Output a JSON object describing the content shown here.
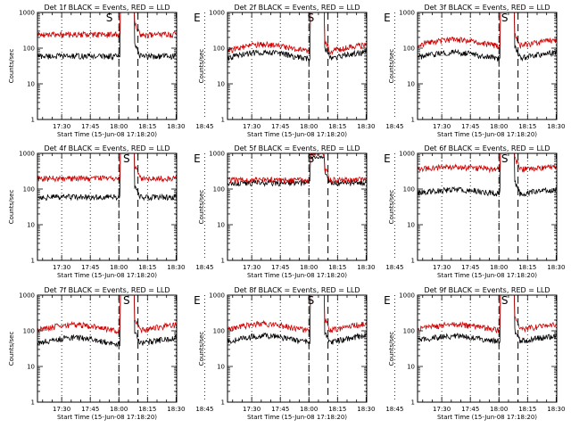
{
  "figure": {
    "background": "#ffffff",
    "axis_color": "#000000",
    "colors": {
      "events": "#000000",
      "lld": "#d00000",
      "markers": "#000000"
    }
  },
  "chart_data": [
    {
      "type": "line",
      "title": "Det 1f BLACK = Events, RED = LLD",
      "xlabel": "Start Time (15-Jun-08 17:18:20)",
      "ylabel": "Counts/sec",
      "yscale": "log",
      "ylim": [
        1,
        1000
      ],
      "xlim_minutes": [
        17.3,
        90.3
      ],
      "x_ticks": [
        "17:30",
        "17:45",
        "18:00",
        "18:15",
        "18:30",
        "18:45"
      ],
      "y_ticks": [
        "1",
        "10",
        "100",
        "1000"
      ],
      "grid": "vertical dotted at ticks",
      "markers": [
        {
          "label": "S",
          "time": "17:55"
        },
        {
          "label": "E",
          "time": "18:41"
        }
      ],
      "dashed_lines": [
        "18:00",
        "18:10"
      ],
      "series": [
        {
          "name": "Events",
          "color": "#000000",
          "baseline": 60,
          "bump": 0,
          "peak": 1500
        },
        {
          "name": "LLD",
          "color": "#d00000",
          "baseline": 240,
          "bump": 0,
          "peak": 1500
        }
      ]
    },
    {
      "type": "line",
      "title": "Det 2f BLACK = Events, RED = LLD",
      "xlabel": "Start Time (15-Jun-08 17:18:20)",
      "ylabel": "Counts/sec",
      "yscale": "log",
      "ylim": [
        1,
        1000
      ],
      "xlim_minutes": [
        17.3,
        90.3
      ],
      "x_ticks": [
        "17:30",
        "17:45",
        "18:00",
        "18:15",
        "18:30",
        "18:45"
      ],
      "y_ticks": [
        "1",
        "10",
        "100",
        "1000"
      ],
      "grid": "vertical dotted at ticks",
      "markers": [
        {
          "label": "S",
          "time": "18:01"
        },
        {
          "label": "E",
          "time": "18:41"
        }
      ],
      "dashed_lines": [
        "18:00",
        "18:10"
      ],
      "series": [
        {
          "name": "Events",
          "color": "#000000",
          "baseline": 62,
          "bump": 1.6,
          "peak": 1500
        },
        {
          "name": "LLD",
          "color": "#d00000",
          "baseline": 100,
          "bump": 1.6,
          "peak": 1500
        }
      ]
    },
    {
      "type": "line",
      "title": "Det 3f BLACK = Events, RED = LLD",
      "xlabel": "Start Time (15-Jun-08 17:18:20)",
      "ylabel": "Counts/sec",
      "yscale": "log",
      "ylim": [
        1,
        1000
      ],
      "xlim_minutes": [
        17.3,
        90.3
      ],
      "x_ticks": [
        "17:30",
        "17:45",
        "18:00",
        "18:15",
        "18:30",
        "18:45"
      ],
      "y_ticks": [
        "1",
        "10",
        "100",
        "1000"
      ],
      "grid": "vertical dotted at ticks",
      "markers": [
        {
          "label": "S",
          "time": "18:03"
        },
        {
          "label": "E",
          "time": "18:41"
        }
      ],
      "dashed_lines": [
        "18:00",
        "18:10"
      ],
      "series": [
        {
          "name": "Events",
          "color": "#000000",
          "baseline": 62,
          "bump": 1.5,
          "peak": 1500
        },
        {
          "name": "LLD",
          "color": "#d00000",
          "baseline": 140,
          "bump": 1.5,
          "peak": 1500
        }
      ]
    },
    {
      "type": "line",
      "title": "Det 4f BLACK = Events, RED = LLD",
      "xlabel": "Start Time (15-Jun-08 17:18:20)",
      "ylabel": "Counts/sec",
      "yscale": "log",
      "ylim": [
        1,
        1000
      ],
      "xlim_minutes": [
        17.3,
        90.3
      ],
      "x_ticks": [
        "17:30",
        "17:45",
        "18:00",
        "18:15",
        "18:30",
        "18:45"
      ],
      "y_ticks": [
        "1",
        "10",
        "100",
        "1000"
      ],
      "grid": "vertical dotted at ticks",
      "markers": [
        {
          "label": "S",
          "time": "18:04"
        },
        {
          "label": "E",
          "time": "18:41"
        }
      ],
      "dashed_lines": [
        "18:00",
        "18:10"
      ],
      "series": [
        {
          "name": "Events",
          "color": "#000000",
          "baseline": 60,
          "bump": 0,
          "peak": 1500
        },
        {
          "name": "LLD",
          "color": "#d00000",
          "baseline": 200,
          "bump": 0,
          "peak": 1500
        }
      ]
    },
    {
      "type": "line",
      "title": "Det 5f BLACK = Events, RED = LLD",
      "xlabel": "Start Time (15-Jun-08 17:18:20)",
      "ylabel": "Counts/sec",
      "yscale": "log",
      "ylim": [
        1,
        1000
      ],
      "xlim_minutes": [
        17.3,
        90.3
      ],
      "x_ticks": [
        "17:30",
        "17:45",
        "18:00",
        "18:15",
        "18:30",
        "18:45"
      ],
      "y_ticks": [
        "1",
        "10",
        "100",
        "1000"
      ],
      "grid": "vertical dotted at ticks",
      "markers": [
        {
          "label": "S",
          "time": "18:01"
        },
        {
          "label": "E",
          "time": "18:41"
        }
      ],
      "dashed_lines": [
        "18:00",
        "18:10"
      ],
      "series": [
        {
          "name": "Events",
          "color": "#000000",
          "baseline": 150,
          "bump": 0,
          "peak": 800
        },
        {
          "name": "LLD",
          "color": "#d00000",
          "baseline": 180,
          "bump": 0,
          "peak": 950
        }
      ]
    },
    {
      "type": "line",
      "title": "Det 6f BLACK = Events, RED = LLD",
      "xlabel": "Start Time (15-Jun-08 17:18:20)",
      "ylabel": "Counts/sec",
      "yscale": "log",
      "ylim": [
        1,
        1000
      ],
      "xlim_minutes": [
        17.3,
        90.3
      ],
      "x_ticks": [
        "17:30",
        "17:45",
        "18:00",
        "18:15",
        "18:30",
        "18:45"
      ],
      "y_ticks": [
        "1",
        "10",
        "100",
        "1000"
      ],
      "grid": "vertical dotted at ticks",
      "markers": [
        {
          "label": "S",
          "time": "18:03"
        },
        {
          "label": "E",
          "time": "18:41"
        }
      ],
      "dashed_lines": [
        "18:00",
        "18:10"
      ],
      "series": [
        {
          "name": "Events",
          "color": "#000000",
          "baseline": 85,
          "bump": 1.3,
          "peak": 1500
        },
        {
          "name": "LLD",
          "color": "#d00000",
          "baseline": 380,
          "bump": 1.2,
          "peak": 1500
        }
      ]
    },
    {
      "type": "line",
      "title": "Det 7f BLACK = Events, RED = LLD",
      "xlabel": "Start Time (15-Jun-08 17:18:20)",
      "ylabel": "Counts/sec",
      "yscale": "log",
      "ylim": [
        1,
        1000
      ],
      "xlim_minutes": [
        17.3,
        90.3
      ],
      "x_ticks": [
        "17:30",
        "17:45",
        "18:00",
        "18:15",
        "18:30",
        "18:45"
      ],
      "y_ticks": [
        "1",
        "10",
        "100",
        "1000"
      ],
      "grid": "vertical dotted at ticks",
      "markers": [
        {
          "label": "S",
          "time": "18:04"
        },
        {
          "label": "E",
          "time": "18:41"
        }
      ],
      "dashed_lines": [
        "18:00",
        "18:10"
      ],
      "series": [
        {
          "name": "Events",
          "color": "#000000",
          "baseline": 52,
          "bump": 1.5,
          "peak": 1500
        },
        {
          "name": "LLD",
          "color": "#d00000",
          "baseline": 120,
          "bump": 1.5,
          "peak": 1500
        }
      ]
    },
    {
      "type": "line",
      "title": "Det 8f BLACK = Events, RED = LLD",
      "xlabel": "Start Time (15-Jun-08 17:18:20)",
      "ylabel": "Counts/sec",
      "yscale": "log",
      "ylim": [
        1,
        1000
      ],
      "xlim_minutes": [
        17.3,
        90.3
      ],
      "x_ticks": [
        "17:30",
        "17:45",
        "18:00",
        "18:15",
        "18:30",
        "18:45"
      ],
      "y_ticks": [
        "1",
        "10",
        "100",
        "1000"
      ],
      "grid": "vertical dotted at ticks",
      "markers": [
        {
          "label": "S",
          "time": "18:01"
        },
        {
          "label": "E",
          "time": "18:41"
        }
      ],
      "dashed_lines": [
        "18:00",
        "18:10"
      ],
      "series": [
        {
          "name": "Events",
          "color": "#000000",
          "baseline": 58,
          "bump": 1.6,
          "peak": 1500
        },
        {
          "name": "LLD",
          "color": "#d00000",
          "baseline": 125,
          "bump": 1.6,
          "peak": 1500
        }
      ]
    },
    {
      "type": "line",
      "title": "Det 9f BLACK = Events, RED = LLD",
      "xlabel": "Start Time (15-Jun-08 17:18:20)",
      "ylabel": "Counts/sec",
      "yscale": "log",
      "ylim": [
        1,
        1000
      ],
      "xlim_minutes": [
        17.3,
        90.3
      ],
      "x_ticks": [
        "17:30",
        "17:45",
        "18:00",
        "18:15",
        "18:30",
        "18:45"
      ],
      "y_ticks": [
        "1",
        "10",
        "100",
        "1000"
      ],
      "grid": "vertical dotted at ticks",
      "markers": [
        {
          "label": "S",
          "time": "18:03"
        },
        {
          "label": "E",
          "time": "18:41"
        }
      ],
      "dashed_lines": [
        "18:00",
        "18:10"
      ],
      "series": [
        {
          "name": "Events",
          "color": "#000000",
          "baseline": 60,
          "bump": 1.4,
          "peak": 1500
        },
        {
          "name": "LLD",
          "color": "#d00000",
          "baseline": 125,
          "bump": 1.4,
          "peak": 1500
        }
      ]
    }
  ]
}
